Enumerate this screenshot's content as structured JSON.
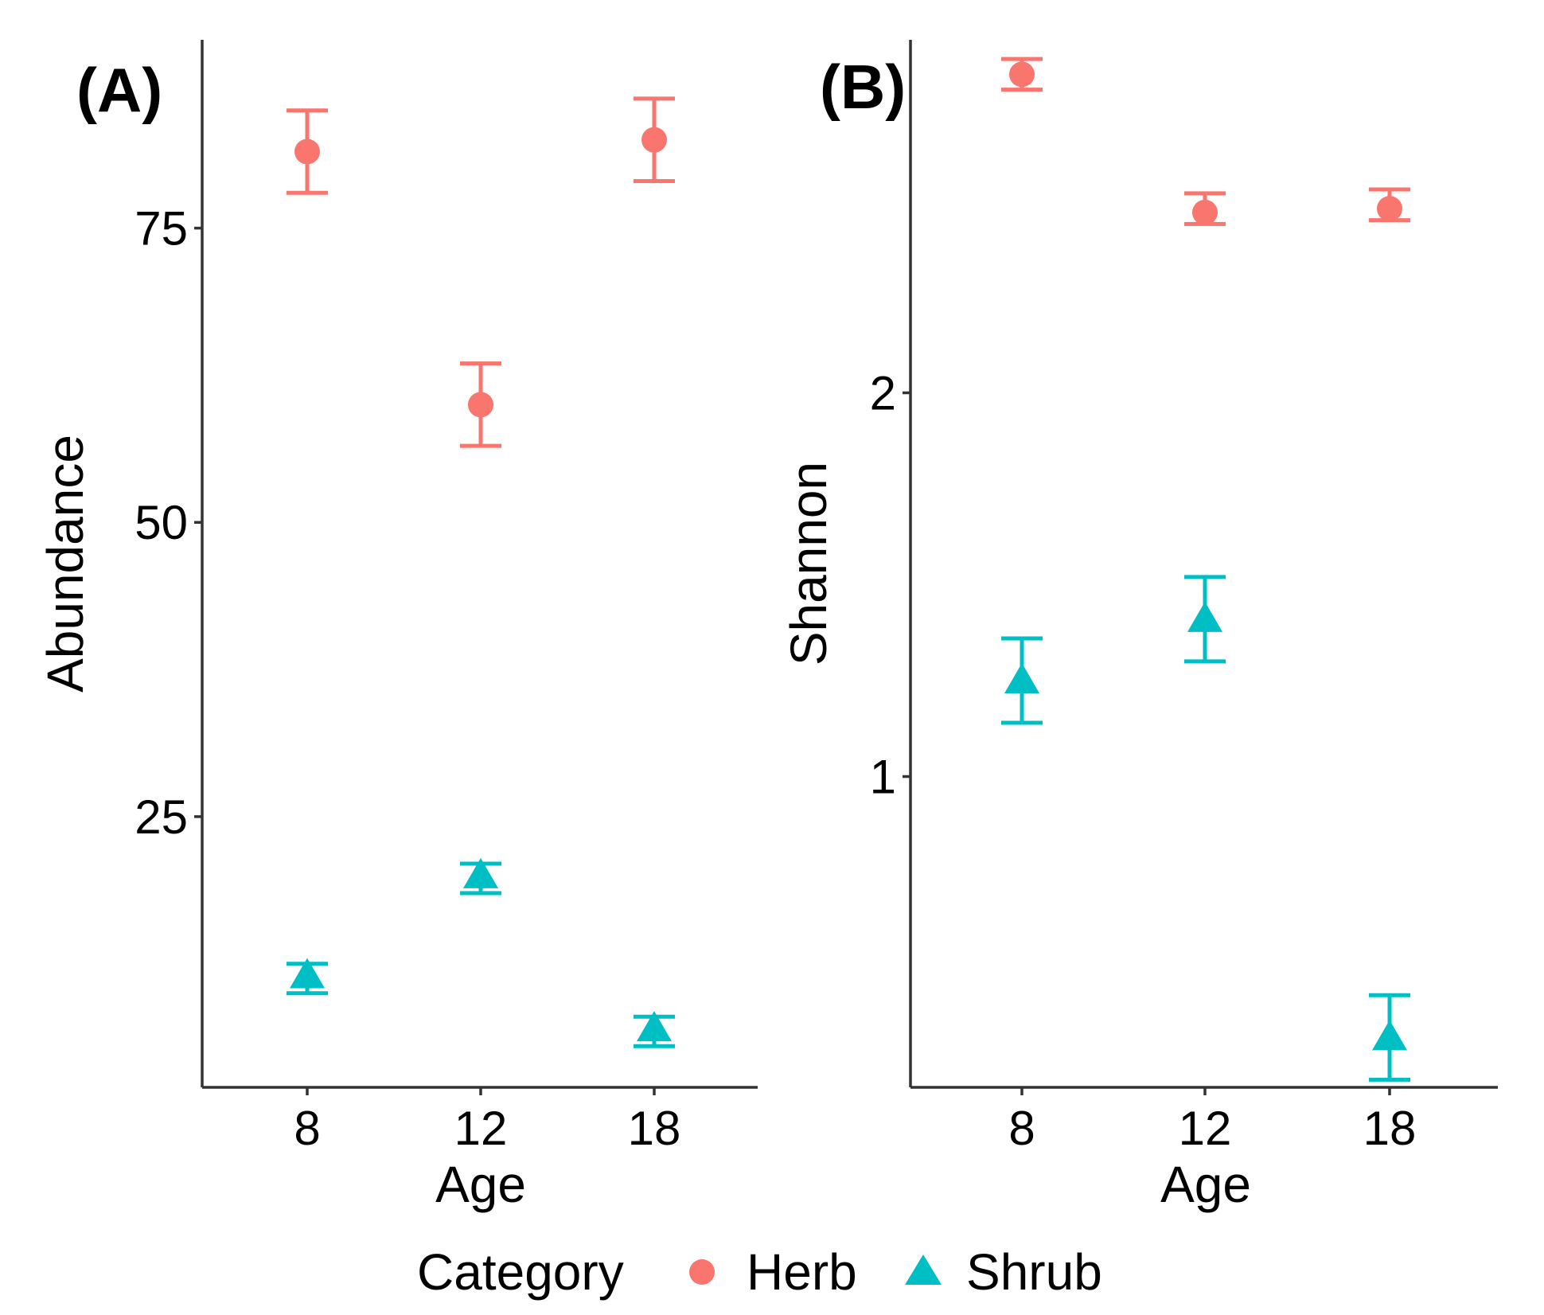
{
  "chart_data": [
    {
      "type": "scatter",
      "panel_label": "(A)",
      "xlabel": "Age",
      "ylabel": "Abundance",
      "categories": [
        "8",
        "12",
        "18"
      ],
      "ylim": [
        2,
        91
      ],
      "yticks": [
        25,
        50,
        75
      ],
      "grid": false,
      "series": [
        {
          "name": "Herb",
          "color": "#F8766D",
          "shape": "circle",
          "values": [
            81.5,
            60,
            82.5
          ],
          "lower": [
            78,
            56.5,
            79
          ],
          "upper": [
            85,
            63.5,
            86
          ]
        },
        {
          "name": "Shrub",
          "color": "#00BFC4",
          "shape": "triangle",
          "values": [
            11.5,
            20,
            7
          ],
          "lower": [
            10,
            18.5,
            5.5
          ],
          "upper": [
            12.5,
            21,
            8
          ]
        }
      ]
    },
    {
      "type": "scatter",
      "panel_label": "(B)",
      "xlabel": "Age",
      "ylabel": "Shannon",
      "categories": [
        "8",
        "12",
        "18"
      ],
      "ylim": [
        0.19,
        2.92
      ],
      "yticks": [
        1,
        2
      ],
      "grid": false,
      "series": [
        {
          "name": "Herb",
          "color": "#F8766D",
          "shape": "circle",
          "values": [
            2.83,
            2.47,
            2.48
          ],
          "lower": [
            2.79,
            2.44,
            2.45
          ],
          "upper": [
            2.87,
            2.52,
            2.53
          ]
        },
        {
          "name": "Shrub",
          "color": "#00BFC4",
          "shape": "triangle",
          "values": [
            1.25,
            1.41,
            0.32
          ],
          "lower": [
            1.14,
            1.3,
            0.21
          ],
          "upper": [
            1.36,
            1.52,
            0.43
          ]
        }
      ]
    }
  ],
  "legend": {
    "title": "Category",
    "position": "bottom",
    "items": [
      {
        "label": "Herb",
        "color": "#F8766D",
        "shape": "circle"
      },
      {
        "label": "Shrub",
        "color": "#00BFC4",
        "shape": "triangle"
      }
    ]
  }
}
